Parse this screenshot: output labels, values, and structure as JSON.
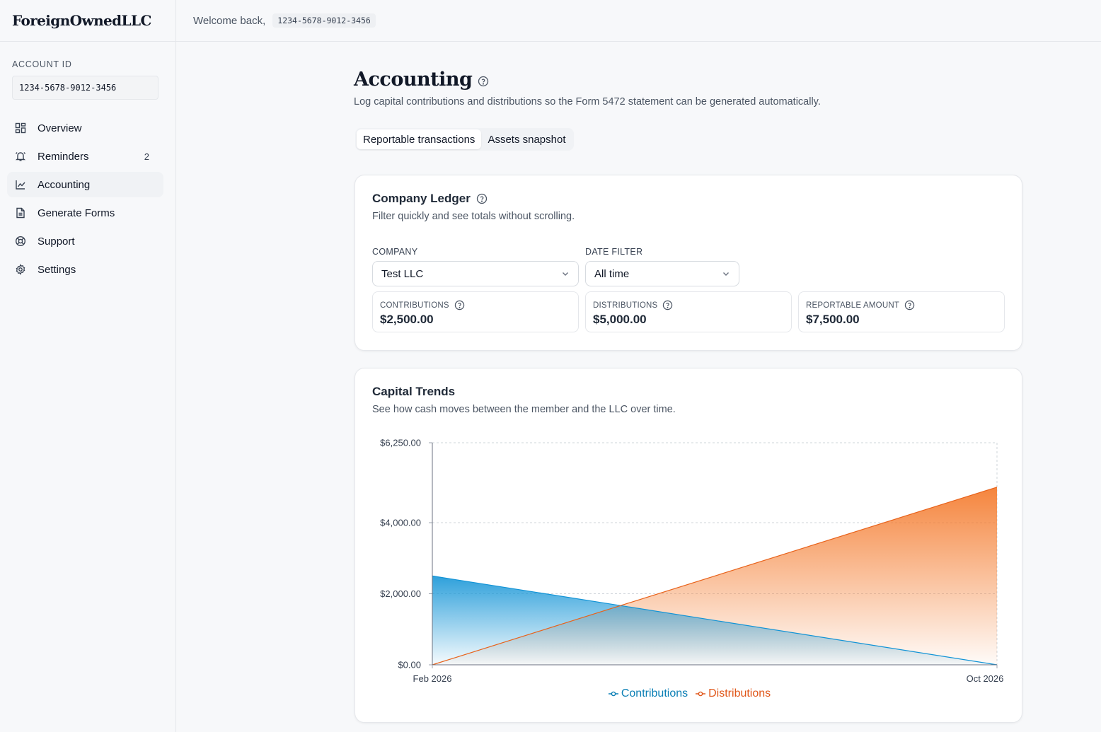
{
  "brand": "ForeignOwnedLLC",
  "topbar": {
    "welcome": "Welcome back,",
    "account_id": "1234-5678-9012-3456"
  },
  "sidebar": {
    "account_label": "ACCOUNT ID",
    "account_id": "1234-5678-9012-3456",
    "items": [
      {
        "label": "Overview",
        "icon": "grid-icon"
      },
      {
        "label": "Reminders",
        "icon": "bell-icon",
        "badge": "2"
      },
      {
        "label": "Accounting",
        "icon": "line-chart-icon",
        "active": true
      },
      {
        "label": "Generate Forms",
        "icon": "document-icon"
      },
      {
        "label": "Support",
        "icon": "lifebuoy-icon"
      },
      {
        "label": "Settings",
        "icon": "gear-icon"
      }
    ]
  },
  "page": {
    "title": "Accounting",
    "subtitle": "Log capital contributions and distributions so the Form 5472 statement can be generated automatically.",
    "tabs": [
      {
        "label": "Reportable transactions",
        "active": true
      },
      {
        "label": "Assets snapshot",
        "active": false
      }
    ]
  },
  "ledger": {
    "title": "Company Ledger",
    "subtitle": "Filter quickly and see totals without scrolling.",
    "company_label": "COMPANY",
    "company_value": "Test LLC",
    "date_label": "DATE FILTER",
    "date_value": "All time",
    "stats": [
      {
        "label": "CONTRIBUTIONS",
        "value": "$2,500.00"
      },
      {
        "label": "DISTRIBUTIONS",
        "value": "$5,000.00"
      },
      {
        "label": "REPORTABLE AMOUNT",
        "value": "$7,500.00"
      }
    ]
  },
  "trends": {
    "title": "Capital Trends",
    "subtitle": "See how cash moves between the member and the LLC over time."
  },
  "colors": {
    "contributions": "#1193d6",
    "distributions": "#e8621a",
    "legend_contributions": "#0b7fb5",
    "legend_distributions": "#e0571a"
  },
  "chart_data": {
    "type": "area",
    "x": [
      "Feb 2026",
      "Oct 2026"
    ],
    "series": [
      {
        "name": "Contributions",
        "values": [
          2500,
          0
        ]
      },
      {
        "name": "Distributions",
        "values": [
          0,
          5000
        ]
      }
    ],
    "ytick_labels": [
      "$0.00",
      "$2,000.00",
      "$4,000.00",
      "$6,250.00"
    ],
    "ytick_values": [
      0,
      2000,
      4000,
      6250
    ],
    "ylim": [
      0,
      6250
    ],
    "grid": true,
    "legend": "bottom-center"
  }
}
